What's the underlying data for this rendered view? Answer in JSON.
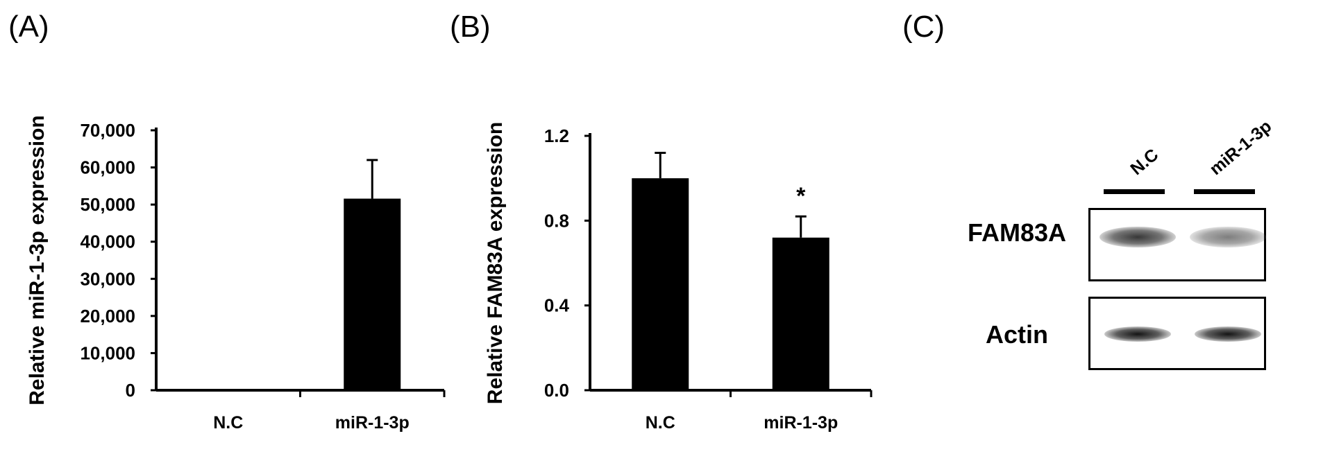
{
  "panels": [
    {
      "letter": "(A)"
    },
    {
      "letter": "(B)"
    },
    {
      "letter": "(C)"
    }
  ],
  "chart_data": [
    {
      "type": "bar",
      "ylabel": "Relative miR-1-3p expression",
      "categories": [
        "N.C",
        "miR-1-3p"
      ],
      "values": [
        1,
        51600
      ],
      "errors": [
        0,
        10400
      ],
      "ylim": [
        0,
        70000
      ],
      "yticks": [
        0,
        10000,
        20000,
        30000,
        40000,
        50000,
        60000,
        70000
      ],
      "ytick_labels": [
        "0",
        "10,000",
        "20,000",
        "30,000",
        "40,000",
        "50,000",
        "60,000",
        "70,000"
      ],
      "annotations": []
    },
    {
      "type": "bar",
      "ylabel": "Relative FAM83A expression",
      "categories": [
        "N.C",
        "miR-1-3p"
      ],
      "values": [
        1.0,
        0.72
      ],
      "errors": [
        0.12,
        0.1
      ],
      "ylim": [
        0,
        1.2
      ],
      "yticks": [
        0,
        0.4,
        0.8,
        1.2
      ],
      "ytick_labels": [
        "0.0",
        "0.4",
        "0.8",
        "1.2"
      ],
      "annotations": [
        "",
        "*"
      ]
    }
  ],
  "blot": {
    "lanes": [
      "N.C",
      "miR-1-3p"
    ],
    "rows": [
      {
        "label": "FAM83A",
        "intensities": [
          0.85,
          0.55
        ]
      },
      {
        "label": "Actin",
        "intensities": [
          1.0,
          1.0
        ]
      }
    ]
  }
}
